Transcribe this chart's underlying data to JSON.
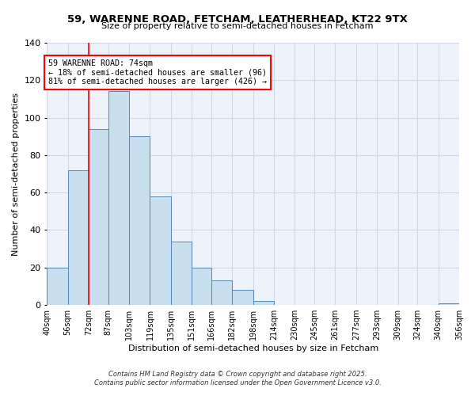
{
  "title": "59, WARENNE ROAD, FETCHAM, LEATHERHEAD, KT22 9TX",
  "subtitle": "Size of property relative to semi-detached houses in Fetcham",
  "xlabel": "Distribution of semi-detached houses by size in Fetcham",
  "ylabel": "Number of semi-detached properties",
  "bar_labels": [
    "40sqm",
    "56sqm",
    "72sqm",
    "87sqm",
    "103sqm",
    "119sqm",
    "135sqm",
    "151sqm",
    "166sqm",
    "182sqm",
    "198sqm",
    "214sqm",
    "230sqm",
    "245sqm",
    "261sqm",
    "277sqm",
    "293sqm",
    "309sqm",
    "324sqm",
    "340sqm",
    "356sqm"
  ],
  "bar_values": [
    20,
    72,
    94,
    114,
    90,
    58,
    34,
    20,
    13,
    8,
    2,
    0,
    0,
    0,
    0,
    0,
    0,
    0,
    0,
    1,
    0
  ],
  "bar_color": "#c8dff0",
  "bar_edge_color": "#5588bb",
  "bg_color": "#edf2fb",
  "grid_color": "#d0d8e8",
  "annotation_title": "59 WARENNE ROAD: 74sqm",
  "annotation_line1": "← 18% of semi-detached houses are smaller (96)",
  "annotation_line2": "81% of semi-detached houses are larger (426) →",
  "vline_x": 72,
  "vline_color": "red",
  "ylim": [
    0,
    140
  ],
  "yticks": [
    0,
    20,
    40,
    60,
    80,
    100,
    120,
    140
  ],
  "bin_edges": [
    40,
    56,
    72,
    87,
    103,
    119,
    135,
    151,
    166,
    182,
    198,
    214,
    230,
    245,
    261,
    277,
    293,
    309,
    324,
    340,
    356
  ],
  "footer1": "Contains HM Land Registry data © Crown copyright and database right 2025.",
  "footer2": "Contains public sector information licensed under the Open Government Licence v3.0."
}
